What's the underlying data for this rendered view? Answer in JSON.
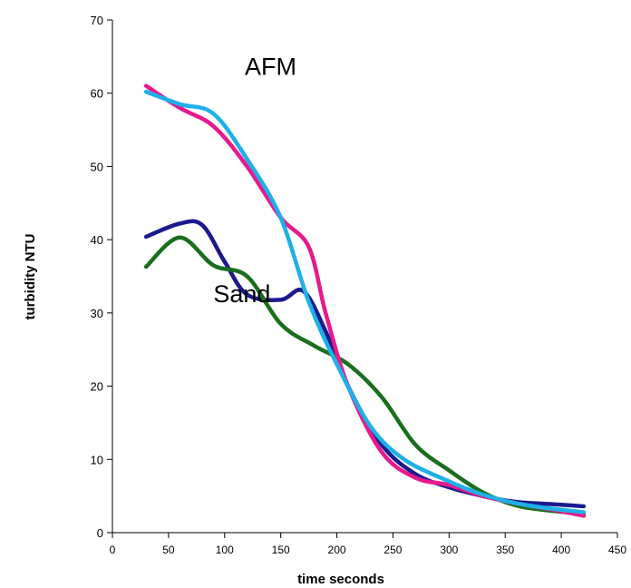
{
  "chart_data": {
    "type": "line",
    "title": "",
    "xlabel": "time seconds",
    "ylabel": "turbidity NTU",
    "xlim": [
      0,
      450
    ],
    "ylim": [
      0,
      70
    ],
    "x_ticks": [
      0,
      50,
      100,
      150,
      200,
      250,
      300,
      350,
      400,
      450
    ],
    "y_ticks": [
      0,
      10,
      20,
      30,
      40,
      50,
      60,
      70
    ],
    "grid": false,
    "legend": "none",
    "annotations": [
      {
        "text": "AFM",
        "x": 118,
        "y": 62.5
      },
      {
        "text": "Sand",
        "x": 90,
        "y": 31.5
      }
    ],
    "series": [
      {
        "color": "#1a1a8c",
        "x": [
          30,
          60,
          80,
          100,
          120,
          150,
          170,
          190,
          210,
          240,
          270,
          300,
          330,
          360,
          390,
          420
        ],
        "y": [
          40.4,
          42.2,
          42.0,
          37.0,
          32.5,
          31.8,
          33.0,
          27.5,
          20.0,
          12.0,
          8.0,
          6.2,
          5.0,
          4.2,
          3.9,
          3.6
        ]
      },
      {
        "color": "#1a6e1e",
        "x": [
          30,
          60,
          90,
          120,
          150,
          180,
          210,
          240,
          270,
          300,
          330,
          360,
          390,
          420
        ],
        "y": [
          36.3,
          40.3,
          36.5,
          35.0,
          28.5,
          25.5,
          23.0,
          18.5,
          12.0,
          8.5,
          5.5,
          3.7,
          3.0,
          2.6
        ]
      },
      {
        "color": "#e8198c",
        "x": [
          30,
          60,
          90,
          120,
          150,
          175,
          190,
          210,
          240,
          270,
          300,
          330,
          360,
          390,
          420
        ],
        "y": [
          61.0,
          58.0,
          55.5,
          50.0,
          43.0,
          39.0,
          30.0,
          20.0,
          11.0,
          7.5,
          6.5,
          5.0,
          4.0,
          3.2,
          2.3
        ]
      },
      {
        "color": "#1eb0e8",
        "x": [
          30,
          60,
          90,
          120,
          150,
          175,
          200,
          230,
          260,
          300,
          330,
          360,
          390,
          420
        ],
        "y": [
          60.2,
          58.5,
          57.2,
          51.0,
          43.0,
          31.5,
          23.0,
          14.5,
          10.0,
          7.0,
          5.2,
          4.0,
          3.3,
          2.8
        ]
      }
    ]
  }
}
